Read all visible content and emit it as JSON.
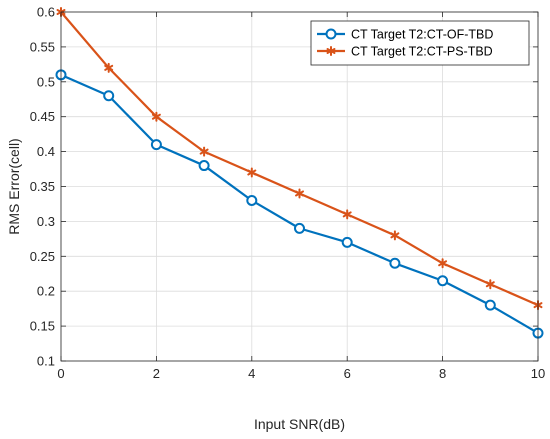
{
  "chart_data": {
    "type": "line",
    "title": "",
    "xlabel": "Input SNR(dB)",
    "ylabel": "RMS Error(cell)",
    "xlim": [
      0,
      10
    ],
    "ylim": [
      0.1,
      0.6
    ],
    "xticks": [
      0,
      2,
      4,
      6,
      8,
      10
    ],
    "yticks": [
      0.1,
      0.15,
      0.2,
      0.25,
      0.3,
      0.35,
      0.4,
      0.45,
      0.5,
      0.55,
      0.6
    ],
    "grid": true,
    "legend_position": "top-right",
    "x": [
      0,
      1,
      2,
      3,
      4,
      5,
      6,
      7,
      8,
      9,
      10
    ],
    "series": [
      {
        "name": "CT Target T2:CT-OF-TBD",
        "color": "#0072BD",
        "marker": "circle",
        "values": [
          0.51,
          0.48,
          0.41,
          0.38,
          0.33,
          0.29,
          0.27,
          0.24,
          0.215,
          0.18,
          0.14
        ]
      },
      {
        "name": "CT Target T2:CT-PS-TBD",
        "color": "#D95319",
        "marker": "asterisk",
        "values": [
          0.6,
          0.52,
          0.45,
          0.4,
          0.37,
          0.34,
          0.31,
          0.28,
          0.24,
          0.21,
          0.18
        ]
      }
    ]
  }
}
